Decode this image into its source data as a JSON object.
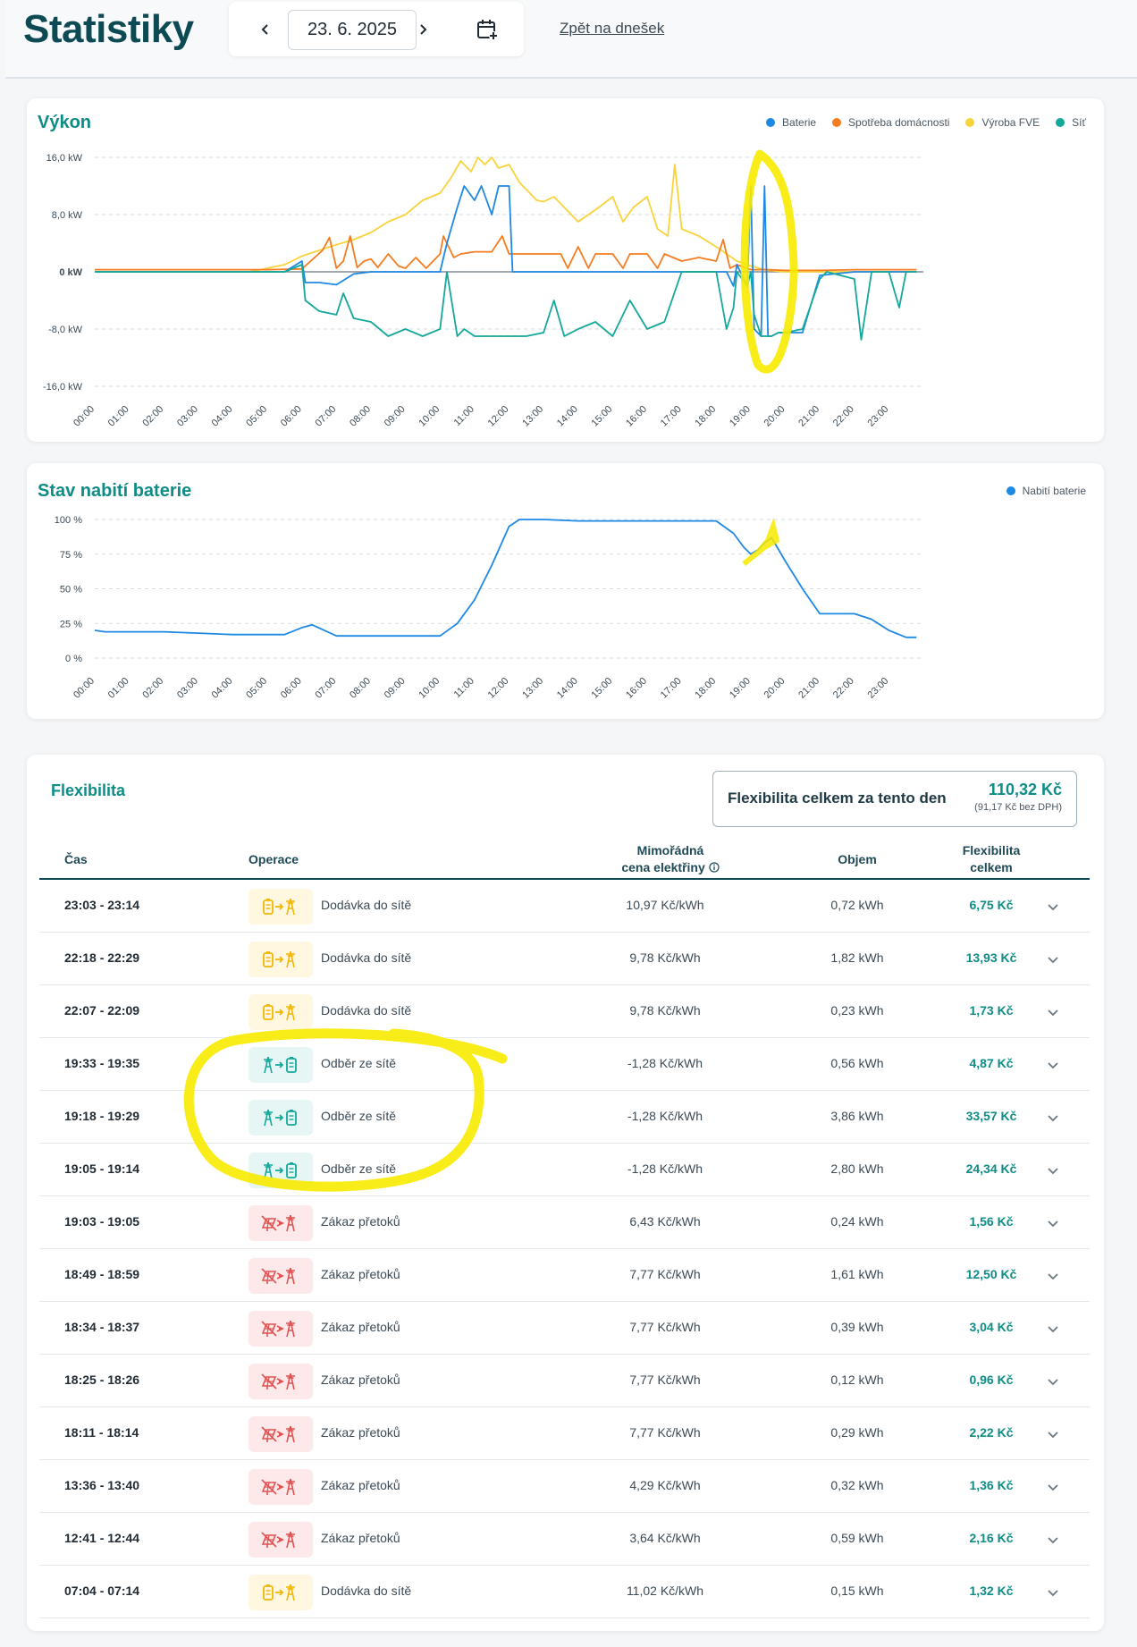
{
  "header": {
    "title": "Statistiky",
    "date": "23. 6. 2025",
    "back_link": "Zpět na dnešek"
  },
  "power_chart": {
    "title": "Výkon",
    "legend": [
      {
        "name": "Baterie",
        "color": "#1e88e5"
      },
      {
        "name": "Spotřeba domácnosti",
        "color": "#f57c20"
      },
      {
        "name": "Výroba FVE",
        "color": "#f9d33c"
      },
      {
        "name": "Síť",
        "color": "#14a89a"
      }
    ]
  },
  "soc_chart": {
    "title": "Stav nabití baterie",
    "legend": [
      {
        "name": "Nabití baterie",
        "color": "#1e88e5"
      }
    ]
  },
  "chart_data": [
    {
      "type": "line",
      "title": "Výkon",
      "ylabel": "",
      "ylim": [
        -16,
        16
      ],
      "yticks": [
        "16,0 kW",
        "8,0 kW",
        "0 kW",
        "-8,0 kW",
        "-16,0 kW"
      ],
      "ytick_values": [
        16,
        8,
        0,
        -8,
        -16
      ],
      "xlim": [
        0,
        24
      ],
      "xticks": [
        "00:00",
        "01:00",
        "02:00",
        "03:00",
        "04:00",
        "05:00",
        "06:00",
        "07:00",
        "08:00",
        "09:00",
        "10:00",
        "11:00",
        "12:00",
        "13:00",
        "14:00",
        "15:00",
        "16:00",
        "17:00",
        "18:00",
        "19:00",
        "20:00",
        "21:00",
        "22:00",
        "23:00"
      ],
      "grid": true,
      "legend_position": "top-right",
      "series": [
        {
          "name": "Výroba FVE",
          "color": "#f9d33c",
          "x": [
            0,
            4.5,
            5.5,
            6,
            6.5,
            7,
            7.5,
            8,
            8.5,
            9,
            9.5,
            10,
            10.3,
            10.6,
            10.9,
            11.1,
            11.3,
            11.5,
            11.7,
            12,
            12.3,
            12.6,
            12.8,
            13,
            13.3,
            13.6,
            14,
            14.3,
            14.6,
            15,
            15.3,
            15.6,
            16,
            16.3,
            16.6,
            16.8,
            17,
            17.5,
            18,
            18.3,
            18.6,
            19,
            19.5,
            20,
            20.5,
            21,
            22,
            23,
            23.8
          ],
          "y": [
            0,
            0,
            1,
            2.2,
            3,
            3.8,
            4.5,
            5.5,
            7,
            8,
            10,
            11,
            13,
            15.5,
            14,
            16,
            15,
            16,
            14.5,
            15,
            12.5,
            11,
            10,
            9.8,
            10.5,
            9,
            7,
            8,
            9,
            10.5,
            7,
            9,
            10.5,
            6,
            5,
            15,
            6,
            5,
            3.5,
            2.5,
            1.5,
            0.8,
            0.2,
            0,
            0,
            0,
            0,
            0,
            0
          ]
        },
        {
          "name": "Spotřeba domácnosti",
          "color": "#f57c20",
          "x": [
            0,
            5,
            6,
            6.6,
            6.8,
            7,
            7.2,
            7.4,
            7.6,
            7.8,
            8,
            8.2,
            8.5,
            8.8,
            9,
            9.3,
            9.6,
            10,
            10.1,
            10.4,
            10.6,
            11,
            11.5,
            11.8,
            12,
            12.2,
            13,
            13.5,
            13.7,
            14,
            14.3,
            14.5,
            15,
            15.3,
            15.5,
            16,
            16.3,
            16.5,
            17,
            17.5,
            18,
            18.2,
            18.4,
            18.6,
            19,
            19.5,
            20,
            21,
            22,
            23,
            23.8
          ],
          "y": [
            0.3,
            0.3,
            0.4,
            3,
            4.8,
            0.5,
            1.5,
            5,
            0.6,
            1.5,
            1.8,
            0.6,
            2.5,
            0.8,
            0.5,
            2,
            0.5,
            2.5,
            5,
            2,
            2.5,
            2.8,
            2.8,
            5,
            2.5,
            2.5,
            2.5,
            2.5,
            0.5,
            3.5,
            0.5,
            2.5,
            2.5,
            0.5,
            2.5,
            2.5,
            0.5,
            2.5,
            1.5,
            2,
            1.5,
            4.5,
            0.5,
            1,
            0.3,
            0.3,
            0.2,
            0.2,
            0.3,
            0.3,
            0.3
          ]
        },
        {
          "name": "Baterie",
          "color": "#1e88e5",
          "x": [
            0,
            5.5,
            6,
            6.1,
            6.5,
            7,
            7.5,
            8,
            9,
            10,
            10.2,
            10.5,
            10.7,
            11,
            11.2,
            11.5,
            11.7,
            12,
            12.1,
            13,
            14,
            15,
            16,
            17,
            18,
            18.3,
            18.5,
            18.6,
            18.9,
            19,
            19.1,
            19.3,
            19.4,
            19.5,
            19.6,
            19.8,
            20,
            20.5,
            21,
            22,
            23,
            23.8
          ],
          "y": [
            0,
            0,
            1.5,
            -1.5,
            -1.5,
            -1.8,
            -0.3,
            0,
            0,
            0,
            4,
            9,
            12,
            10,
            12,
            8,
            12,
            12,
            0,
            0,
            0,
            0,
            0,
            0,
            0,
            0,
            -2,
            1,
            -2,
            12,
            -8,
            -9,
            12,
            -9,
            -9,
            -8.5,
            -8.5,
            -8.5,
            -0.5,
            0,
            0,
            0
          ]
        },
        {
          "name": "Síť",
          "color": "#14a89a",
          "x": [
            0,
            5.5,
            6,
            6.1,
            6.5,
            7,
            7.2,
            7.5,
            8,
            8.5,
            9,
            9.5,
            10,
            10.2,
            10.5,
            10.7,
            11,
            11.5,
            12,
            12.1,
            12.5,
            13,
            13.3,
            13.6,
            14,
            14.5,
            15,
            15.5,
            16,
            16.5,
            17,
            17.5,
            18,
            18.3,
            18.5,
            18.6,
            18.9,
            19,
            19.1,
            19.3,
            19.4,
            19.5,
            19.6,
            19.8,
            20,
            20.5,
            21,
            21.2,
            22,
            22.2,
            22.5,
            23,
            23.3,
            23.5,
            23.8
          ],
          "y": [
            0,
            0,
            1,
            -4,
            -5.5,
            -6,
            -3,
            -6.5,
            -7,
            -9,
            -8,
            -9,
            -8,
            0,
            -9,
            -8,
            -9,
            -9,
            -9,
            -9,
            -9,
            -8.5,
            -4,
            -9,
            -8,
            -7,
            -9,
            -4,
            -8,
            -7,
            0,
            0,
            0,
            -8,
            -5,
            0,
            -2,
            0,
            -6,
            -9,
            -9,
            -9,
            -9,
            -8.5,
            -8.5,
            -8,
            -1,
            0,
            -1,
            -9.5,
            0,
            0,
            -5,
            0,
            0
          ]
        }
      ]
    },
    {
      "type": "line",
      "title": "Stav nabití baterie",
      "ylabel": "",
      "ylim": [
        0,
        100
      ],
      "yticks": [
        "100 %",
        "75 %",
        "50 %",
        "25 %",
        "0 %"
      ],
      "ytick_values": [
        100,
        75,
        50,
        25,
        0
      ],
      "xlim": [
        0,
        24
      ],
      "xticks": [
        "00:00",
        "01:00",
        "02:00",
        "03:00",
        "04:00",
        "05:00",
        "06:00",
        "07:00",
        "08:00",
        "09:00",
        "10:00",
        "11:00",
        "12:00",
        "13:00",
        "14:00",
        "15:00",
        "16:00",
        "17:00",
        "18:00",
        "19:00",
        "20:00",
        "21:00",
        "22:00",
        "23:00"
      ],
      "grid": true,
      "legend_position": "top-right",
      "series": [
        {
          "name": "Nabití baterie",
          "color": "#1e88e5",
          "x": [
            0,
            0.3,
            2,
            3,
            4,
            5.5,
            6,
            6.3,
            7,
            7.5,
            8,
            9,
            10,
            10.5,
            11,
            11.5,
            12,
            12.3,
            13,
            14,
            15,
            16,
            17,
            18,
            18.5,
            18.8,
            19,
            19.2,
            19.4,
            19.6,
            20,
            20.5,
            21,
            22,
            22.5,
            23,
            23.5,
            23.8
          ],
          "y": [
            20,
            19,
            19,
            18,
            17,
            17,
            22,
            24,
            16,
            16,
            16,
            16,
            16,
            25,
            42,
            67,
            95,
            100,
            100,
            99,
            99,
            99,
            99,
            99,
            90,
            80,
            75,
            78,
            83,
            87,
            70,
            50,
            32,
            32,
            28,
            20,
            15,
            15
          ]
        }
      ]
    }
  ],
  "flexibility": {
    "title": "Flexibilita",
    "total_label": "Flexibilita celkem za tento den",
    "total_value": "110,32 Kč",
    "total_sub": "(91,17 Kč bez DPH)",
    "columns": {
      "time": "Čas",
      "operation": "Operace",
      "price_line1": "Mimořádná",
      "price_line2": "cena elektřiny",
      "volume": "Objem",
      "flex_line1": "Flexibilita",
      "flex_line2": "celkem"
    },
    "rows": [
      {
        "time": "23:03 - 23:14",
        "kind": "supply",
        "operation": "Dodávka do sítě",
        "price": "10,97 Kč/kWh",
        "volume": "0,72 kWh",
        "flex": "6,75 Kč"
      },
      {
        "time": "22:18 - 22:29",
        "kind": "supply",
        "operation": "Dodávka do sítě",
        "price": "9,78 Kč/kWh",
        "volume": "1,82 kWh",
        "flex": "13,93 Kč"
      },
      {
        "time": "22:07 - 22:09",
        "kind": "supply",
        "operation": "Dodávka do sítě",
        "price": "9,78 Kč/kWh",
        "volume": "0,23 kWh",
        "flex": "1,73 Kč"
      },
      {
        "time": "19:33 - 19:35",
        "kind": "draw",
        "operation": "Odběr ze sítě",
        "price": "-1,28 Kč/kWh",
        "volume": "0,56 kWh",
        "flex": "4,87 Kč"
      },
      {
        "time": "19:18 - 19:29",
        "kind": "draw",
        "operation": "Odběr ze sítě",
        "price": "-1,28 Kč/kWh",
        "volume": "3,86 kWh",
        "flex": "33,57 Kč"
      },
      {
        "time": "19:05 - 19:14",
        "kind": "draw",
        "operation": "Odběr ze sítě",
        "price": "-1,28 Kč/kWh",
        "volume": "2,80 kWh",
        "flex": "24,34 Kč"
      },
      {
        "time": "19:03 - 19:05",
        "kind": "ban",
        "operation": "Zákaz přetoků",
        "price": "6,43 Kč/kWh",
        "volume": "0,24 kWh",
        "flex": "1,56 Kč"
      },
      {
        "time": "18:49 - 18:59",
        "kind": "ban",
        "operation": "Zákaz přetoků",
        "price": "7,77 Kč/kWh",
        "volume": "1,61 kWh",
        "flex": "12,50 Kč"
      },
      {
        "time": "18:34 - 18:37",
        "kind": "ban",
        "operation": "Zákaz přetoků",
        "price": "7,77 Kč/kWh",
        "volume": "0,39 kWh",
        "flex": "3,04 Kč"
      },
      {
        "time": "18:25 - 18:26",
        "kind": "ban",
        "operation": "Zákaz přetoků",
        "price": "7,77 Kč/kWh",
        "volume": "0,12 kWh",
        "flex": "0,96 Kč"
      },
      {
        "time": "18:11 - 18:14",
        "kind": "ban",
        "operation": "Zákaz přetoků",
        "price": "7,77 Kč/kWh",
        "volume": "0,29 kWh",
        "flex": "2,22 Kč"
      },
      {
        "time": "13:36 - 13:40",
        "kind": "ban",
        "operation": "Zákaz přetoků",
        "price": "4,29 Kč/kWh",
        "volume": "0,32 kWh",
        "flex": "1,36 Kč"
      },
      {
        "time": "12:41 - 12:44",
        "kind": "ban",
        "operation": "Zákaz přetoků",
        "price": "3,64 Kč/kWh",
        "volume": "0,59 kWh",
        "flex": "2,16 Kč"
      },
      {
        "time": "07:04 - 07:14",
        "kind": "supply",
        "operation": "Dodávka do sítě",
        "price": "11,02 Kč/kWh",
        "volume": "0,15 kWh",
        "flex": "1,32 Kč"
      }
    ]
  },
  "colors": {
    "accent": "#0e8c86",
    "title": "#0e4a54",
    "supply": "#f2b705",
    "draw": "#14a89a",
    "ban": "#e05252",
    "highlight": "#f7ea00"
  }
}
